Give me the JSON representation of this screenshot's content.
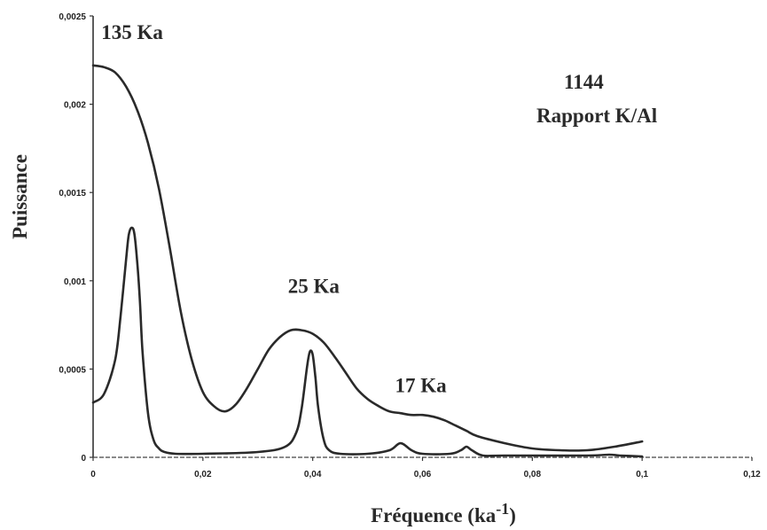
{
  "chart_data": {
    "type": "line",
    "title": "1144",
    "subtitle": "Rapport K/Al",
    "xlabel": "Fréquence (ka",
    "xlabel_sup": "-1",
    "xlabel_close": ")",
    "ylabel": "Puissance",
    "xlim": [
      0,
      0.12
    ],
    "ylim": [
      0,
      0.0025
    ],
    "x_ticks": [
      0,
      0.02,
      0.04,
      0.06,
      0.08,
      0.1,
      0.12
    ],
    "x_tick_labels": [
      "0",
      "0,02",
      "0,04",
      "0,06",
      "0,08",
      "0,1",
      "0,12"
    ],
    "y_ticks": [
      0,
      0.0005,
      0.001,
      0.0015,
      0.002,
      0.0025
    ],
    "y_tick_labels": [
      "0",
      "0,0005",
      "0,001",
      "0,0015",
      "0,002",
      "0,0025"
    ],
    "grid": false,
    "annotations": [
      {
        "text": "135 Ka",
        "x": 0.0015,
        "y": 0.00237
      },
      {
        "text": "25 Ka",
        "x": 0.0355,
        "y": 0.00093
      },
      {
        "text": "17 Ka",
        "x": 0.055,
        "y": 0.00037
      }
    ],
    "series": [
      {
        "x": [
          0,
          0.002,
          0.004,
          0.006,
          0.008,
          0.01,
          0.012,
          0.014,
          0.016,
          0.018,
          0.02,
          0.022,
          0.024,
          0.026,
          0.028,
          0.03,
          0.032,
          0.034,
          0.036,
          0.038,
          0.04,
          0.042,
          0.044,
          0.046,
          0.048,
          0.05,
          0.052,
          0.054,
          0.056,
          0.058,
          0.06,
          0.062,
          0.064,
          0.066,
          0.068,
          0.07,
          0.075,
          0.08,
          0.085,
          0.09,
          0.095,
          0.1
        ],
        "values": [
          0.00222,
          0.00221,
          0.00218,
          0.0021,
          0.00197,
          0.00178,
          0.00152,
          0.00118,
          0.00082,
          0.00055,
          0.00037,
          0.00029,
          0.00026,
          0.0003,
          0.00039,
          0.0005,
          0.00061,
          0.00068,
          0.00072,
          0.00072,
          0.0007,
          0.00065,
          0.00057,
          0.00048,
          0.00039,
          0.00033,
          0.00029,
          0.00026,
          0.00025,
          0.00024,
          0.00024,
          0.00023,
          0.00021,
          0.00018,
          0.00015,
          0.00012,
          8e-05,
          5e-05,
          4e-05,
          4e-05,
          6e-05,
          9e-05
        ]
      },
      {
        "x": [
          0,
          0.002,
          0.004,
          0.005,
          0.006,
          0.0065,
          0.007,
          0.0075,
          0.008,
          0.0085,
          0.009,
          0.01,
          0.011,
          0.012,
          0.013,
          0.015,
          0.02,
          0.03,
          0.035,
          0.037,
          0.038,
          0.039,
          0.0395,
          0.04,
          0.0405,
          0.041,
          0.042,
          0.043,
          0.045,
          0.05,
          0.054,
          0.056,
          0.058,
          0.06,
          0.065,
          0.067,
          0.068,
          0.069,
          0.071,
          0.075,
          0.09,
          0.094,
          0.096,
          0.1
        ],
        "values": [
          0.00031,
          0.00036,
          0.00055,
          0.0008,
          0.00112,
          0.00126,
          0.0013,
          0.00127,
          0.00112,
          0.0009,
          0.0006,
          0.00025,
          0.0001,
          5e-05,
          3e-05,
          2e-05,
          2e-05,
          3e-05,
          6e-05,
          0.00014,
          0.00028,
          0.00052,
          0.0006,
          0.00058,
          0.00045,
          0.00028,
          0.0001,
          4e-05,
          2e-05,
          2e-05,
          4e-05,
          8e-05,
          4e-05,
          2e-05,
          2e-05,
          4e-05,
          6e-05,
          4e-05,
          1e-05,
          1e-05,
          1e-05,
          1.5e-05,
          1e-05,
          5e-06
        ]
      }
    ]
  }
}
